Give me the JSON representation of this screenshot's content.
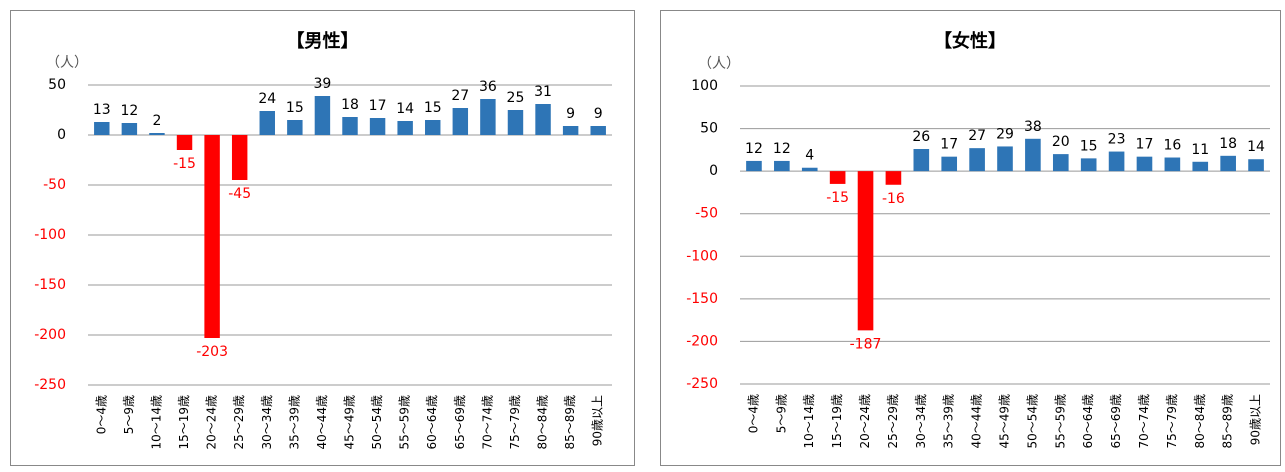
{
  "chart_data": [
    {
      "type": "bar",
      "title": "【男性】",
      "unit_label": "（人）",
      "categories": [
        "0～4歳",
        "5～9歳",
        "10～14歳",
        "15～19歳",
        "20～24歳",
        "25～29歳",
        "30～34歳",
        "35～39歳",
        "40～44歳",
        "45～49歳",
        "50～54歳",
        "55～59歳",
        "60～64歳",
        "65～69歳",
        "70～74歳",
        "75～79歳",
        "80～84歳",
        "85～89歳",
        "90歳以上"
      ],
      "values": [
        13,
        12,
        2,
        -15,
        -203,
        -45,
        24,
        15,
        39,
        18,
        17,
        14,
        15,
        27,
        36,
        25,
        31,
        9,
        9
      ],
      "color": "#2e75b6",
      "negative_color": "#ff0000",
      "ylim": [
        -250,
        50
      ],
      "yticks": [
        -250,
        -200,
        -150,
        -100,
        -50,
        0,
        50
      ],
      "grid": true
    },
    {
      "type": "bar",
      "title": "【女性】",
      "unit_label": "（人）",
      "categories": [
        "0～4歳",
        "5～9歳",
        "10～14歳",
        "15～19歳",
        "20～24歳",
        "25～29歳",
        "30～34歳",
        "35～39歳",
        "40～44歳",
        "45～49歳",
        "50～54歳",
        "55～59歳",
        "60～64歳",
        "65～69歳",
        "70～74歳",
        "75～79歳",
        "80～84歳",
        "85～89歳",
        "90歳以上"
      ],
      "values": [
        12,
        12,
        4,
        -15,
        -187,
        -16,
        26,
        17,
        27,
        29,
        38,
        20,
        15,
        23,
        17,
        16,
        11,
        18,
        14
      ],
      "color": "#2e75b6",
      "negative_color": "#ff0000",
      "ylim": [
        -250,
        100
      ],
      "yticks": [
        -250,
        -200,
        -150,
        -100,
        -50,
        0,
        50,
        100
      ],
      "grid": true
    }
  ]
}
